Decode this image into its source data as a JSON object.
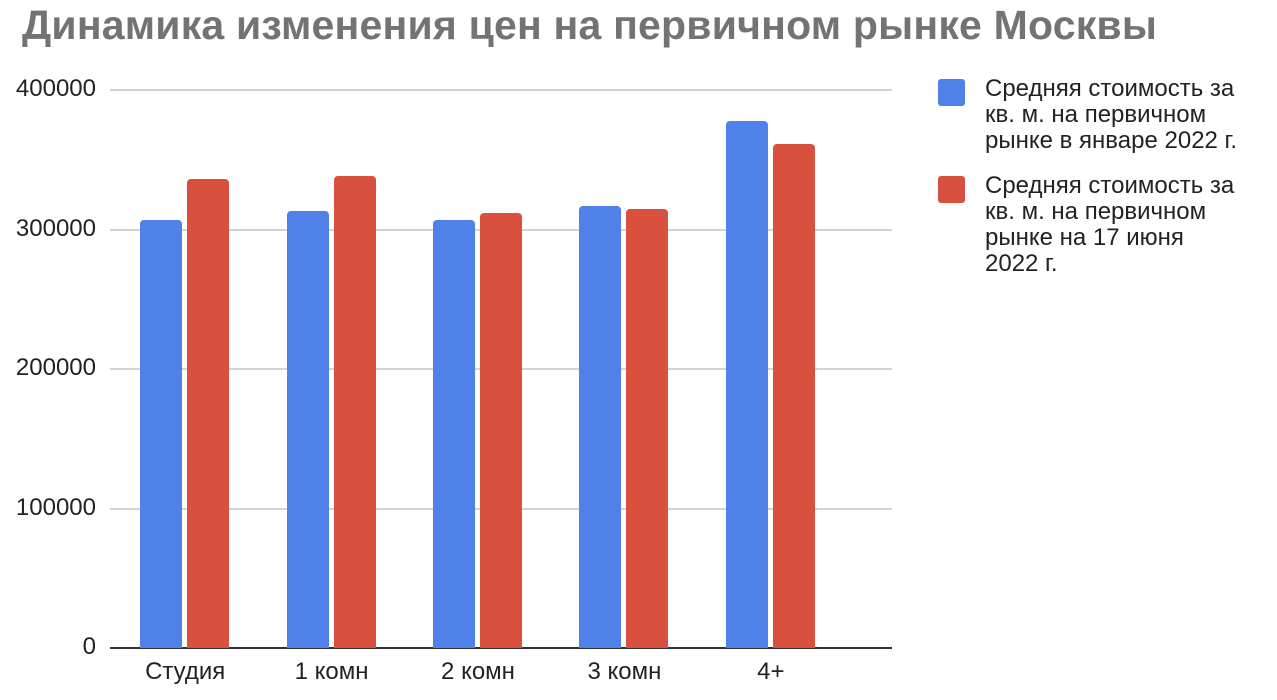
{
  "chart_data": {
    "type": "bar",
    "title": "Динамика изменения цен на первичном рынке Москвы",
    "xlabel": "",
    "ylabel": "",
    "ylim": [
      0,
      400000
    ],
    "yticks": [
      "0",
      "100000",
      "200000",
      "300000",
      "400000"
    ],
    "grid": true,
    "legend_position": "right",
    "categories": [
      "Студия",
      "1 комн",
      "2 комн",
      "3 комн",
      "4+"
    ],
    "series": [
      {
        "name": "Средняя стоимость за кв. м. на первичном рынке в январе 2022 г.",
        "color": "#4f81e8",
        "values": [
          307000,
          313000,
          307000,
          317000,
          378000
        ]
      },
      {
        "name": "Средняя стоимость за кв. м. на первичном рынке на 17 июня 2022 г.",
        "color": "#d9503f",
        "values": [
          336000,
          338000,
          312000,
          315000,
          361000
        ]
      }
    ]
  },
  "legend": {
    "items": [
      {
        "lines": [
          "Средняя стоимость за",
          "кв. м. на первичном",
          "рынке в январе 2022 г."
        ]
      },
      {
        "lines": [
          "Средняя стоимость за",
          "кв. м. на первичном",
          "рынке на 17 июня",
          "2022 г."
        ]
      }
    ]
  }
}
